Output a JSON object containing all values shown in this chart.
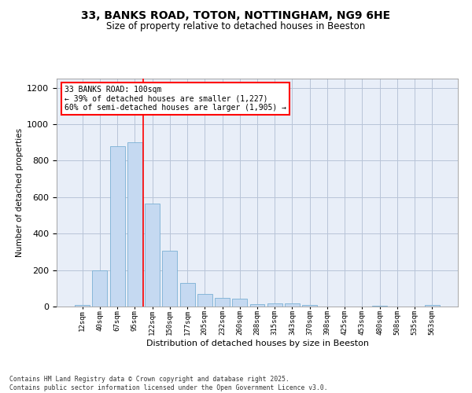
{
  "title": "33, BANKS ROAD, TOTON, NOTTINGHAM, NG9 6HE",
  "subtitle": "Size of property relative to detached houses in Beeston",
  "xlabel": "Distribution of detached houses by size in Beeston",
  "ylabel": "Number of detached properties",
  "categories": [
    "12sqm",
    "40sqm",
    "67sqm",
    "95sqm",
    "122sqm",
    "150sqm",
    "177sqm",
    "205sqm",
    "232sqm",
    "260sqm",
    "288sqm",
    "315sqm",
    "343sqm",
    "370sqm",
    "398sqm",
    "425sqm",
    "453sqm",
    "480sqm",
    "508sqm",
    "535sqm",
    "563sqm"
  ],
  "values": [
    10,
    200,
    880,
    900,
    565,
    305,
    130,
    70,
    47,
    43,
    15,
    18,
    18,
    8,
    2,
    0,
    0,
    5,
    0,
    2,
    7
  ],
  "bar_color": "#c5d9f1",
  "bar_edge_color": "#7ab0d4",
  "vline_x": 3.5,
  "vline_color": "red",
  "annotation_text": "33 BANKS ROAD: 100sqm\n← 39% of detached houses are smaller (1,227)\n60% of semi-detached houses are larger (1,905) →",
  "annotation_box_color": "white",
  "annotation_box_edge_color": "red",
  "ylim": [
    0,
    1250
  ],
  "yticks": [
    0,
    200,
    400,
    600,
    800,
    1000,
    1200
  ],
  "footer": "Contains HM Land Registry data © Crown copyright and database right 2025.\nContains public sector information licensed under the Open Government Licence v3.0.",
  "bg_color": "#e8eef8",
  "grid_color": "#b8c4d8"
}
